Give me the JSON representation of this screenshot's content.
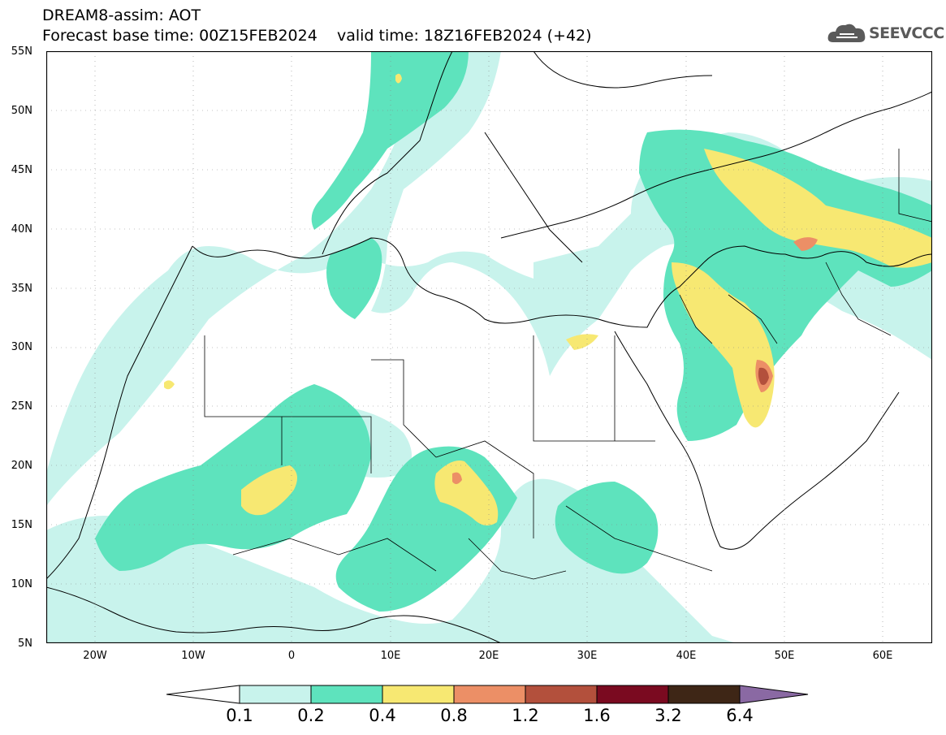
{
  "header": {
    "title_line1": "DREAM8-assim: AOT",
    "title_line2": "Forecast base time: 00Z15FEB2024    valid time: 18Z16FEB2024 (+42)"
  },
  "logo": {
    "text": "SEEVCCC",
    "icon": "cloud-logo-icon"
  },
  "map": {
    "lat_labels": [
      "55N",
      "50N",
      "45N",
      "40N",
      "35N",
      "30N",
      "25N",
      "20N",
      "15N",
      "10N",
      "5N"
    ],
    "lon_labels": [
      "20W",
      "10W",
      "0",
      "10E",
      "20E",
      "30E",
      "40E",
      "50E",
      "60E"
    ],
    "projection": "lat-lon",
    "extent": {
      "lon": [
        -25,
        65
      ],
      "lat": [
        5,
        55
      ]
    }
  },
  "colorbar": {
    "labels": [
      "0.1",
      "0.2",
      "0.4",
      "0.8",
      "1.2",
      "1.6",
      "3.2",
      "6.4"
    ],
    "colors": [
      "#ffffff",
      "#c8f3ec",
      "#5ee3bd",
      "#f7e872",
      "#ec8f66",
      "#b3503c",
      "#7a0a20",
      "#3e2616",
      "#8a69a3"
    ]
  },
  "colors": {
    "aot_0_1": "#c8f3ec",
    "aot_0_2": "#5ee3bd",
    "aot_0_4": "#f7e872",
    "aot_0_8": "#ec8f66",
    "aot_1_2": "#b3503c"
  }
}
